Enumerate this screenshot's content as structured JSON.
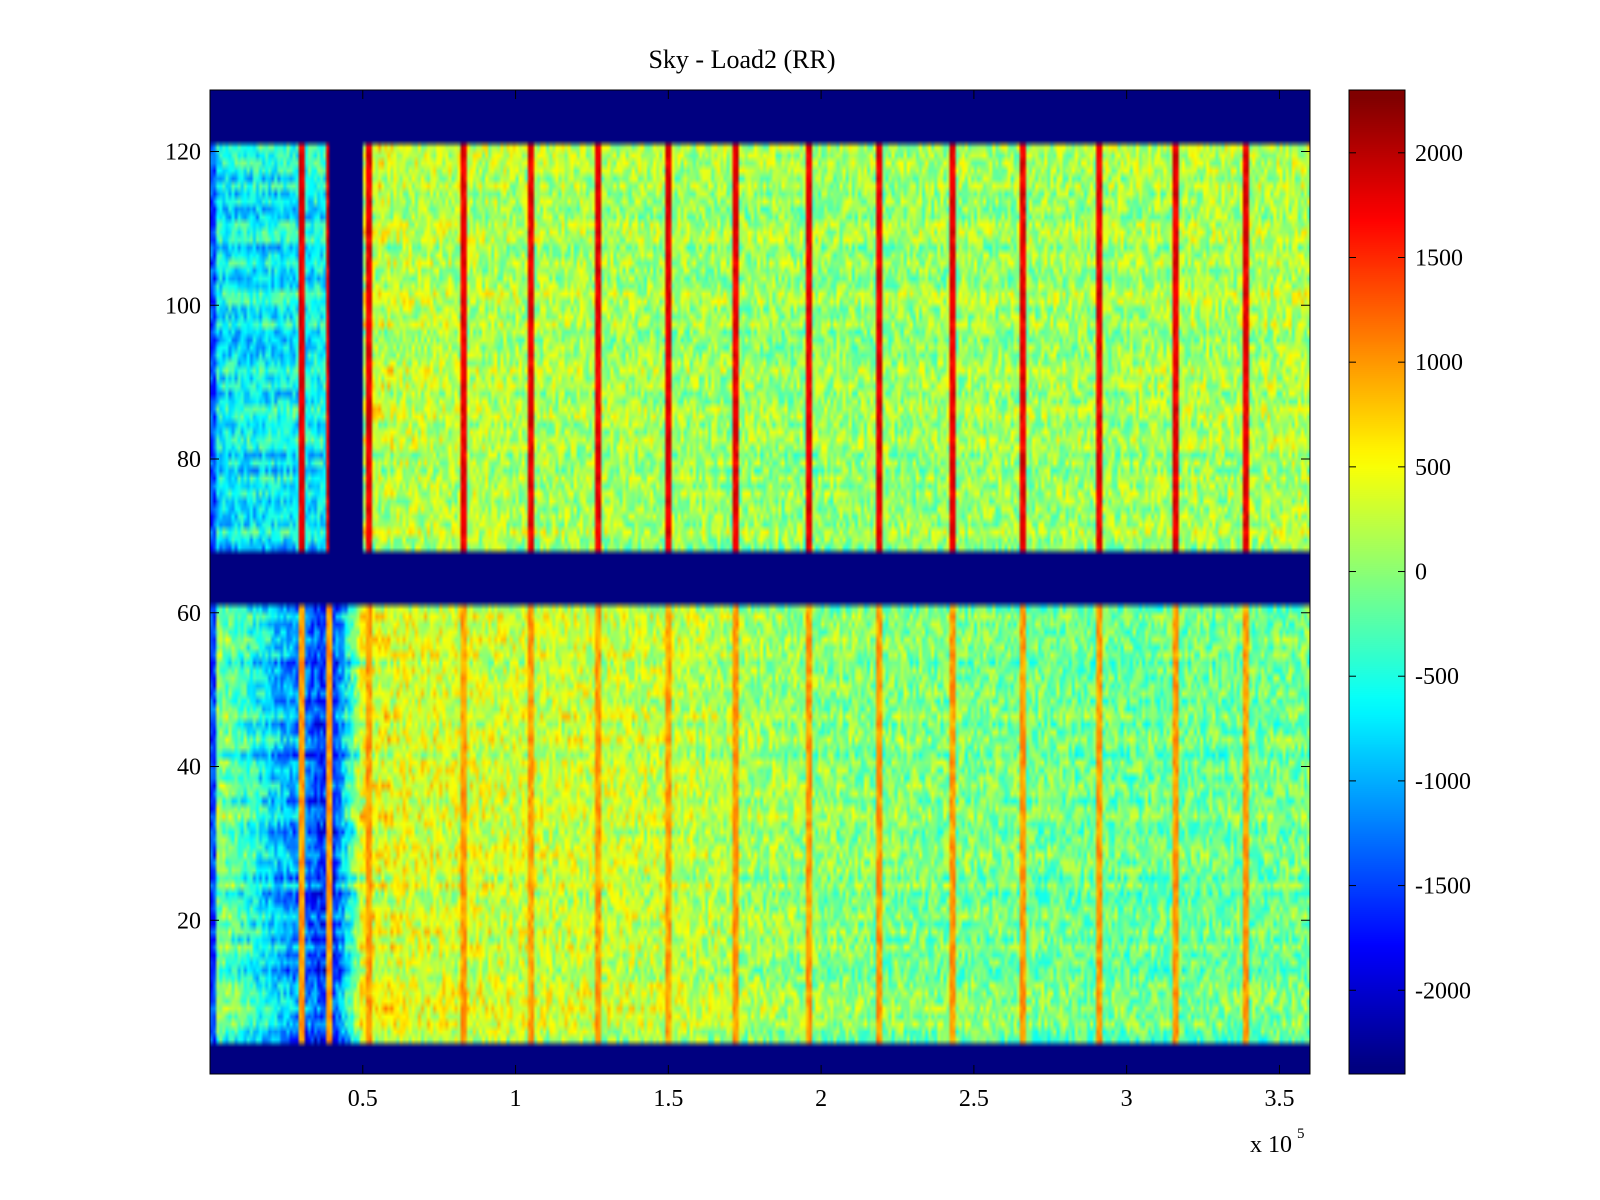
{
  "chart_data": {
    "type": "heatmap",
    "title": "Sky - Load2 (RR)",
    "xlabel": "",
    "ylabel": "",
    "x_multiplier_label": "x 10",
    "x_multiplier_exponent": "5",
    "xlim": [
      0,
      3.6
    ],
    "ylim": [
      0,
      128
    ],
    "x_ticks": [
      0.5,
      1,
      1.5,
      2,
      2.5,
      3,
      3.5
    ],
    "x_tick_labels": [
      "0.5",
      "1",
      "1.5",
      "2",
      "2.5",
      "3",
      "3.5"
    ],
    "y_ticks": [
      20,
      40,
      60,
      80,
      100,
      120
    ],
    "y_tick_labels": [
      "20",
      "40",
      "60",
      "80",
      "100",
      "120"
    ],
    "colorbar": {
      "colormap": "jet",
      "clim": [
        -2400,
        2300
      ],
      "ticks": [
        2000,
        1500,
        1000,
        500,
        0,
        -500,
        -1000,
        -1500,
        -2000
      ],
      "tick_labels": [
        "2000",
        "1500",
        "1000",
        "500",
        "0",
        "-500",
        "-1000",
        "-1500",
        "-2000"
      ]
    },
    "masked_value": -2400,
    "masked_row_bands": [
      [
        0,
        4
      ],
      [
        61,
        68
      ],
      [
        121,
        128
      ]
    ],
    "masked_column_bands": [
      {
        "x_range": [
          0.39,
          0.5
        ],
        "y_range": [
          68,
          121
        ]
      }
    ],
    "upper_block": {
      "y_range": [
        68,
        121
      ],
      "base_level_by_x": [
        [
          0,
          -700
        ],
        [
          0.4,
          -600
        ],
        [
          0.5,
          250
        ],
        [
          1.0,
          150
        ],
        [
          2.0,
          50
        ],
        [
          3.0,
          100
        ],
        [
          3.6,
          200
        ]
      ]
    },
    "lower_block": {
      "y_range": [
        4,
        61
      ],
      "base_level_by_x": [
        [
          0,
          100
        ],
        [
          0.4,
          -1700
        ],
        [
          0.5,
          400
        ],
        [
          1.0,
          300
        ],
        [
          1.5,
          250
        ],
        [
          2.0,
          0
        ],
        [
          3.0,
          -150
        ],
        [
          3.6,
          -100
        ]
      ]
    },
    "vertical_spikes_x": [
      0.3,
      0.39,
      0.52,
      0.83,
      1.05,
      1.27,
      1.5,
      1.72,
      1.96,
      2.19,
      2.43,
      2.66,
      2.91,
      3.16,
      3.39
    ],
    "spike_value": 1800
  }
}
